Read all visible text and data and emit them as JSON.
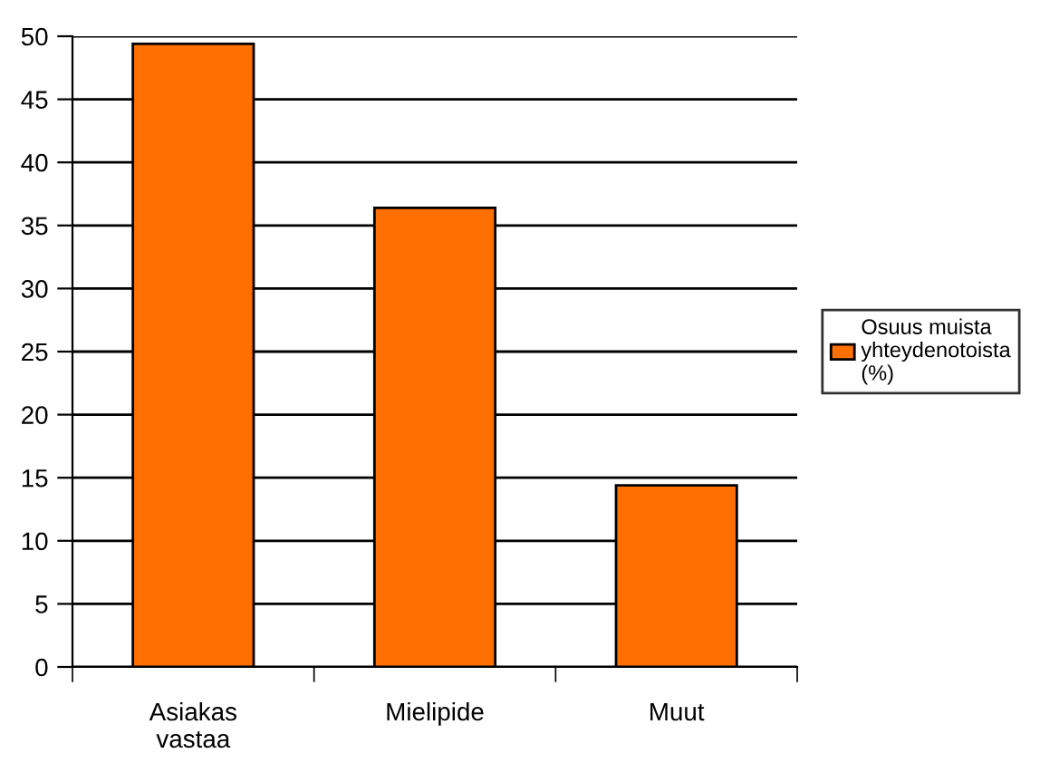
{
  "chart_data": {
    "type": "bar",
    "categories": [
      "Asiakas\nvastaa",
      "Mielipide",
      "Muut"
    ],
    "series": [
      {
        "name": "Osuus muista\nyhteydenotoista\n(%)",
        "color": "#ff7000",
        "values": [
          49.4,
          36.4,
          14.4
        ]
      }
    ],
    "ylim": [
      0,
      50
    ],
    "yticks": [
      0,
      5,
      10,
      15,
      20,
      25,
      30,
      35,
      40,
      45,
      50
    ],
    "grid": "y",
    "legend": "right"
  }
}
